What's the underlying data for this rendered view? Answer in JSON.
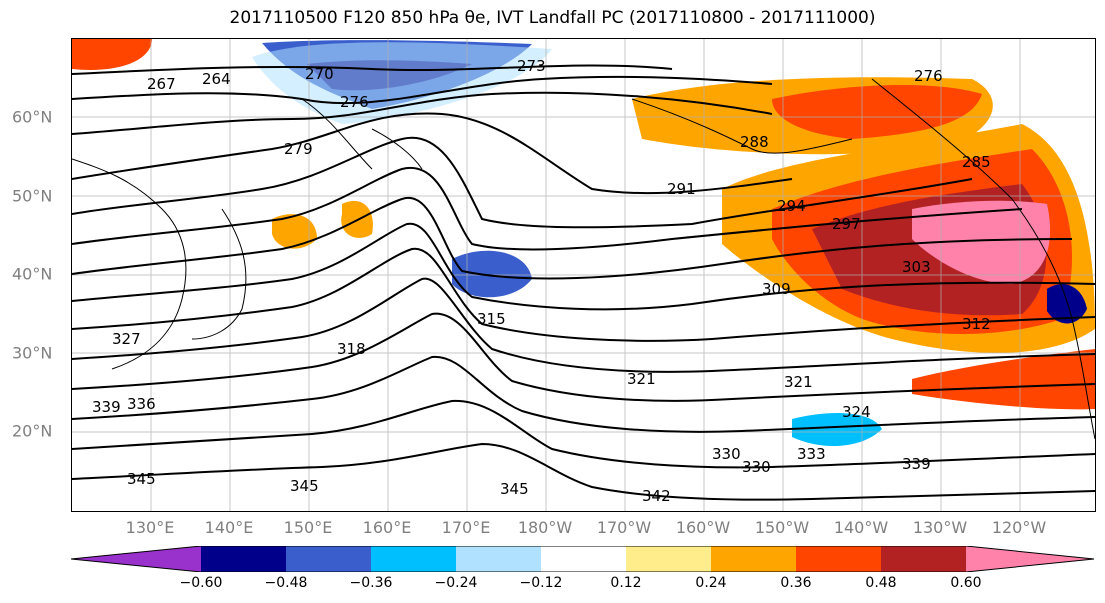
{
  "title": "2017110500 F120 850 hPa θe, IVT Landfall PC (2017110800 - 2017111000)",
  "latitude_labels": [
    "60°N",
    "50°N",
    "40°N",
    "30°N",
    "20°N"
  ],
  "longitude_labels": [
    "130°E",
    "140°E",
    "150°E",
    "160°E",
    "170°E",
    "180°W",
    "170°W",
    "160°W",
    "150°W",
    "140°W",
    "130°W",
    "120°W"
  ],
  "colorbar": {
    "ticks": [
      "−0.60",
      "−0.48",
      "−0.36",
      "−0.24",
      "−0.12",
      "0.12",
      "0.24",
      "0.36",
      "0.48",
      "0.60"
    ],
    "colors": [
      "#9932cc",
      "#00008b",
      "#3a5fcd",
      "#00bfff",
      "#b0e2ff",
      "#ffffff",
      "#ffec8b",
      "#ffa500",
      "#ff4500",
      "#b22222",
      "#ff82ab"
    ]
  },
  "contour_labels": [
    "267",
    "264",
    "270",
    "273",
    "276",
    "276",
    "279",
    "288",
    "285",
    "291",
    "294",
    "297",
    "303",
    "309",
    "312",
    "315",
    "318",
    "321",
    "321",
    "324",
    "327",
    "330",
    "330",
    "333",
    "336",
    "339",
    "339",
    "342",
    "345",
    "345",
    "345"
  ]
}
